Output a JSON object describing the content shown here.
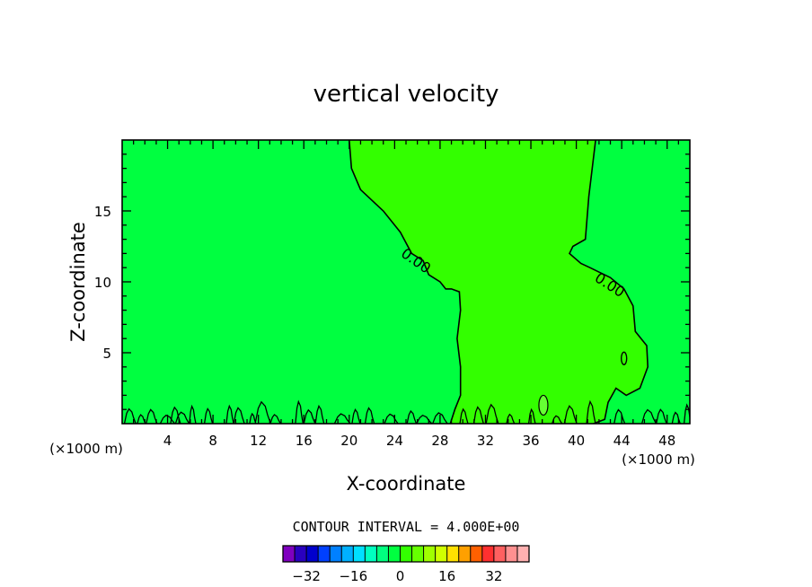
{
  "chart_data": {
    "type": "contour",
    "title": "vertical velocity",
    "xlabel": "X-coordinate",
    "ylabel": "Z-coordinate",
    "x_unit": "(×1000 m)",
    "x_unit_right": "(×1000 m)",
    "xlim": [
      0,
      50
    ],
    "ylim": [
      0,
      20
    ],
    "x_ticks": [
      4,
      8,
      12,
      16,
      20,
      24,
      28,
      32,
      36,
      40,
      44,
      48
    ],
    "y_ticks": [
      5,
      10,
      15
    ],
    "contour_label": "0.00",
    "contour_interval_text": "CONTOUR INTERVAL = 4.000E+00",
    "colorbar": {
      "levels": [
        -36,
        -32,
        -28,
        -24,
        -20,
        -16,
        -12,
        -8,
        -4,
        0,
        4,
        8,
        12,
        16,
        20,
        24,
        28,
        32,
        36
      ],
      "tick_labels": [
        "-32",
        "-16",
        "0",
        "16",
        "32"
      ],
      "tick_values": [
        -32,
        -16,
        0,
        16,
        32
      ],
      "colors": [
        "#7f00bf",
        "#2a00bf",
        "#0000cc",
        "#0040ff",
        "#0080ff",
        "#00b0ff",
        "#00e0ff",
        "#00ffc0",
        "#00ff80",
        "#00ff40",
        "#33ff00",
        "#66ff00",
        "#a0ff00",
        "#d0ff00",
        "#ffe000",
        "#ffa000",
        "#ff6000",
        "#ff3030",
        "#ff6060",
        "#ff9090",
        "#ffb0b0"
      ]
    },
    "fill_colors": {
      "negative_region": "#00ff40",
      "positive_region": "#33ff00",
      "small_positive_patch": "#66ff33"
    },
    "zero_contour": {
      "left_boundary": [
        [
          20,
          20
        ],
        [
          20.2,
          18
        ],
        [
          21,
          16.5
        ],
        [
          23,
          15
        ],
        [
          24.5,
          13.5
        ],
        [
          25.5,
          12
        ],
        [
          26.5,
          11.5
        ],
        [
          27,
          10.5
        ],
        [
          28,
          10
        ],
        [
          28.5,
          9.5
        ],
        [
          29,
          9.5
        ],
        [
          29.7,
          9.3
        ],
        [
          29.8,
          8
        ],
        [
          29.5,
          6
        ],
        [
          29.8,
          4
        ],
        [
          29.8,
          2
        ],
        [
          29.3,
          1
        ],
        [
          28.9,
          0
        ]
      ],
      "right_boundary": [
        [
          41.7,
          20
        ],
        [
          41.4,
          18
        ],
        [
          41.1,
          16
        ],
        [
          40.8,
          13
        ],
        [
          39.7,
          12.5
        ],
        [
          39.4,
          12
        ],
        [
          40.4,
          11.3
        ],
        [
          41.2,
          11
        ],
        [
          43,
          10.3
        ],
        [
          44.2,
          9.5
        ],
        [
          45,
          8.3
        ],
        [
          45.2,
          6.5
        ],
        [
          46.2,
          5.5
        ],
        [
          46.3,
          4
        ],
        [
          45.6,
          2.5
        ],
        [
          44.4,
          2
        ],
        [
          43.5,
          2.5
        ],
        [
          42.8,
          1.5
        ],
        [
          42.5,
          0.3
        ],
        [
          41.5,
          0
        ]
      ]
    }
  }
}
